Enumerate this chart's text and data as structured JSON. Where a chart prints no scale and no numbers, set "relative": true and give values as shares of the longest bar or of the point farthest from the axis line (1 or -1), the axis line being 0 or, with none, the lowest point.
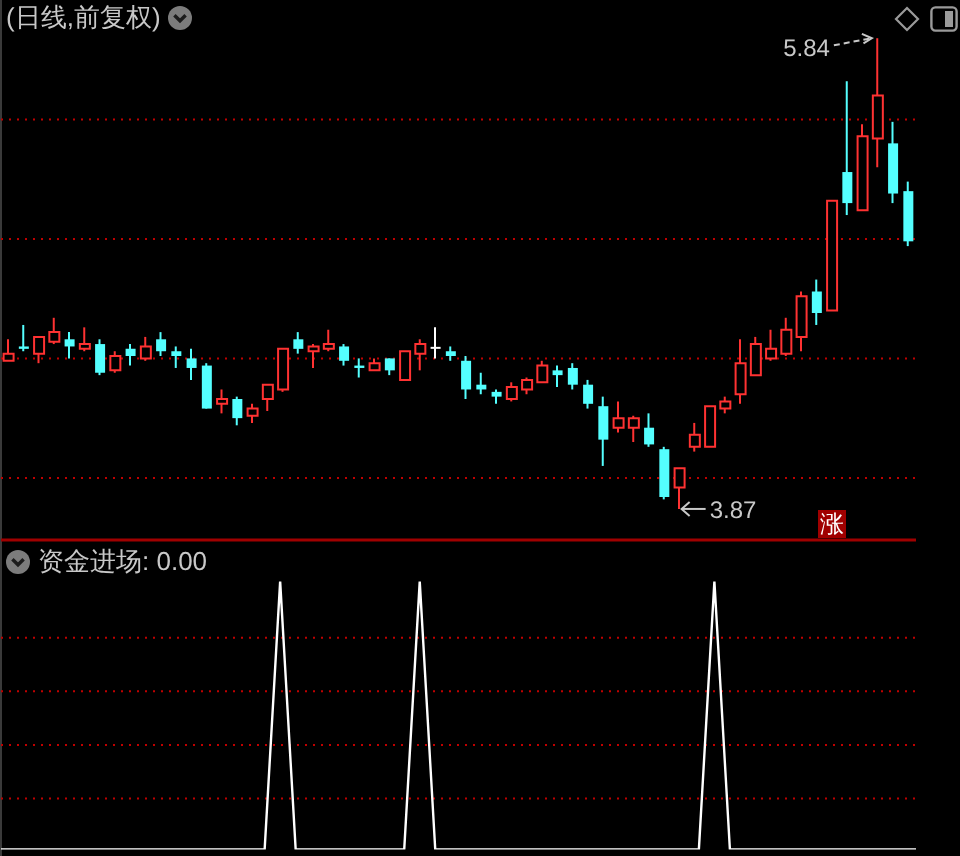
{
  "chart_data": [
    {
      "type": "candlestick",
      "title": "(日线,前复权)",
      "categories": [
        null,
        null,
        null,
        null,
        null,
        null,
        null,
        null,
        null,
        null,
        null,
        null,
        null,
        null,
        null,
        null,
        null,
        null,
        null,
        null,
        null,
        null,
        null,
        null,
        null,
        null,
        null,
        null,
        null,
        null,
        null,
        null,
        null,
        null,
        null,
        null,
        null,
        null,
        null,
        null,
        null,
        null,
        null,
        null,
        null,
        null,
        null,
        null,
        null,
        null,
        null,
        null,
        null,
        null,
        null,
        null,
        null,
        null,
        null,
        null
      ],
      "ohlc": [
        [
          4.49,
          4.58,
          4.49,
          4.52
        ],
        [
          4.55,
          4.64,
          4.53,
          4.54
        ],
        [
          4.52,
          4.59,
          4.48,
          4.59
        ],
        [
          4.57,
          4.67,
          4.56,
          4.61
        ],
        [
          4.58,
          4.61,
          4.5,
          4.55
        ],
        [
          4.54,
          4.63,
          4.53,
          4.56
        ],
        [
          4.56,
          4.58,
          4.43,
          4.44
        ],
        [
          4.45,
          4.53,
          4.44,
          4.51
        ],
        [
          4.54,
          4.56,
          4.47,
          4.51
        ],
        [
          4.5,
          4.59,
          4.49,
          4.55
        ],
        [
          4.58,
          4.61,
          4.51,
          4.53
        ],
        [
          4.53,
          4.55,
          4.46,
          4.51
        ],
        [
          4.5,
          4.54,
          4.41,
          4.46
        ],
        [
          4.47,
          4.48,
          4.29,
          4.29
        ],
        [
          4.31,
          4.37,
          4.27,
          4.33
        ],
        [
          4.33,
          4.34,
          4.22,
          4.25
        ],
        [
          4.26,
          4.31,
          4.23,
          4.29
        ],
        [
          4.33,
          4.39,
          4.28,
          4.39
        ],
        [
          4.37,
          4.54,
          4.36,
          4.54
        ],
        [
          4.58,
          4.61,
          4.52,
          4.54
        ],
        [
          4.53,
          4.56,
          4.46,
          4.55
        ],
        [
          4.54,
          4.62,
          4.53,
          4.56
        ],
        [
          4.55,
          4.56,
          4.47,
          4.49
        ],
        [
          4.47,
          4.5,
          4.42,
          4.46
        ],
        [
          4.45,
          4.5,
          4.45,
          4.48
        ],
        [
          4.5,
          4.5,
          4.43,
          4.45
        ],
        [
          4.41,
          4.53,
          4.41,
          4.53
        ],
        [
          4.52,
          4.58,
          4.45,
          4.56
        ],
        [
          4.54,
          4.63,
          4.5,
          4.54
        ],
        [
          4.53,
          4.55,
          4.49,
          4.51
        ],
        [
          4.49,
          4.51,
          4.33,
          4.37
        ],
        [
          4.39,
          4.44,
          4.35,
          4.37
        ],
        [
          4.36,
          4.37,
          4.31,
          4.34
        ],
        [
          4.33,
          4.4,
          4.32,
          4.38
        ],
        [
          4.37,
          4.42,
          4.35,
          4.41
        ],
        [
          4.4,
          4.49,
          4.4,
          4.47
        ],
        [
          4.45,
          4.47,
          4.38,
          4.43
        ],
        [
          4.46,
          4.48,
          4.37,
          4.39
        ],
        [
          4.39,
          4.41,
          4.29,
          4.31
        ],
        [
          4.3,
          4.34,
          4.05,
          4.16
        ],
        [
          4.21,
          4.32,
          4.19,
          4.25
        ],
        [
          4.21,
          4.26,
          4.15,
          4.25
        ],
        [
          4.21,
          4.27,
          4.13,
          4.14
        ],
        [
          4.12,
          4.13,
          3.91,
          3.92
        ],
        [
          3.96,
          4.04,
          3.87,
          4.04
        ],
        [
          4.13,
          4.23,
          4.11,
          4.18
        ],
        [
          4.13,
          4.3,
          4.13,
          4.3
        ],
        [
          4.29,
          4.34,
          4.27,
          4.32
        ],
        [
          4.35,
          4.58,
          4.31,
          4.48
        ],
        [
          4.43,
          4.59,
          4.43,
          4.56
        ],
        [
          4.5,
          4.62,
          4.49,
          4.54
        ],
        [
          4.52,
          4.67,
          4.51,
          4.62
        ],
        [
          4.59,
          4.78,
          4.53,
          4.76
        ],
        [
          4.78,
          4.83,
          4.64,
          4.69
        ],
        [
          4.7,
          5.16,
          4.7,
          5.16
        ],
        [
          5.28,
          5.66,
          5.1,
          5.15
        ],
        [
          5.12,
          5.48,
          5.12,
          5.43
        ],
        [
          5.42,
          5.84,
          5.3,
          5.6
        ],
        [
          5.4,
          5.49,
          5.15,
          5.19
        ],
        [
          5.2,
          5.24,
          4.97,
          4.99
        ]
      ],
      "colors": [
        "#ff3232",
        "#54ffff",
        "#ff3232",
        "#ff3232",
        "#54ffff",
        "#ff3232",
        "#54ffff",
        "#ff3232",
        "#54ffff",
        "#ff3232",
        "#54ffff",
        "#54ffff",
        "#54ffff",
        "#54ffff",
        "#ff3232",
        "#54ffff",
        "#ff3232",
        "#ff3232",
        "#ff3232",
        "#54ffff",
        "#ff3232",
        "#ff3232",
        "#54ffff",
        "#54ffff",
        "#ff3232",
        "#54ffff",
        "#ff3232",
        "#ff3232",
        "#ffffff",
        "#54ffff",
        "#54ffff",
        "#54ffff",
        "#54ffff",
        "#ff3232",
        "#ff3232",
        "#ff3232",
        "#54ffff",
        "#54ffff",
        "#54ffff",
        "#54ffff",
        "#ff3232",
        "#ff3232",
        "#54ffff",
        "#54ffff",
        "#ff3232",
        "#ff3232",
        "#ff3232",
        "#ff3232",
        "#ff3232",
        "#ff3232",
        "#ff3232",
        "#ff3232",
        "#ff3232",
        "#54ffff",
        "#ff3232",
        "#54ffff",
        "#ff3232",
        "#ff3232",
        "#54ffff",
        "#54ffff"
      ],
      "ylim": [
        3.74,
        6.0
      ],
      "yticks": [
        {
          "value": 4,
          "label": null
        },
        {
          "value": 4.5,
          "label": null
        },
        {
          "value": 5,
          "label": null
        },
        {
          "value": 5.5,
          "label": null
        }
      ],
      "grid": "y",
      "tick_labels": false,
      "annotations": [
        "5.84",
        "3.87",
        "涨"
      ]
    },
    {
      "type": "line",
      "title": "资金进场: 0.00",
      "categories": [
        null,
        null,
        null,
        null,
        null,
        null,
        null,
        null,
        null,
        null,
        null,
        null,
        null,
        null,
        null,
        null,
        null,
        null,
        null,
        null,
        null,
        null,
        null,
        null,
        null,
        null,
        null,
        null,
        null,
        null,
        null,
        null,
        null,
        null,
        null,
        null,
        null,
        null,
        null,
        null,
        null,
        null,
        null,
        null,
        null,
        null,
        null,
        null,
        null,
        null,
        null,
        null,
        null,
        null,
        null,
        null,
        null,
        null,
        null,
        null
      ],
      "values": [
        0,
        0,
        0,
        0,
        0,
        0,
        0,
        0,
        0,
        0,
        0,
        0,
        0,
        0,
        0,
        0,
        0,
        0,
        1,
        0,
        0,
        0,
        0,
        0,
        0,
        0,
        0,
        1,
        0,
        0,
        0,
        0,
        0,
        0,
        0,
        0,
        0,
        0,
        0,
        0,
        0,
        0,
        0,
        0,
        0,
        0,
        1,
        0,
        0,
        0,
        0,
        0,
        0,
        0,
        0,
        0,
        0,
        0,
        0,
        0
      ],
      "color": "#ffffff",
      "relative": true,
      "ref_lines": [
        {
          "axis": "y",
          "value": 0.19,
          "color": "#c00000",
          "line_style": "dotted"
        },
        {
          "axis": "y",
          "value": 0.39,
          "color": "#c00000",
          "line_style": "dotted"
        },
        {
          "axis": "y",
          "value": 0.59,
          "color": "#c00000",
          "line_style": "dotted"
        },
        {
          "axis": "y",
          "value": 0.79,
          "color": "#c00000",
          "line_style": "dotted"
        }
      ],
      "tick_labels": false
    }
  ]
}
